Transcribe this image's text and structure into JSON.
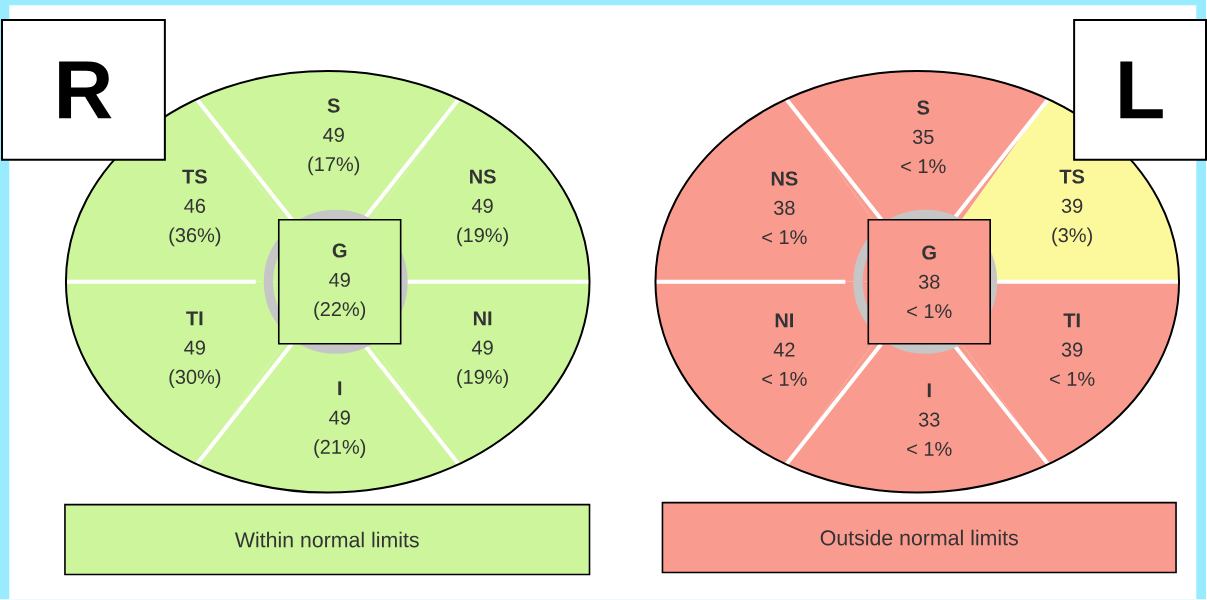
{
  "chart_data": [
    {
      "type": "other",
      "title": "R",
      "categories": [
        "S",
        "TS",
        "NS",
        "TI",
        "NI",
        "I",
        "G"
      ],
      "values": [
        49,
        46,
        49,
        49,
        49,
        49,
        49
      ],
      "data_labels": true,
      "colors": [
        "#ccf59c",
        "#ccf59c",
        "#ccf59c",
        "#ccf59c",
        "#ccf59c",
        "#ccf59c",
        "#ccf59c"
      ],
      "annotations": [
        {
          "text": "(17%)",
          "x": "S"
        },
        {
          "text": "(36%)",
          "x": "TS"
        },
        {
          "text": "(19%)",
          "x": "NS"
        },
        {
          "text": "(30%)",
          "x": "TI"
        },
        {
          "text": "(19%)",
          "x": "NI"
        },
        {
          "text": "(21%)",
          "x": "I"
        },
        {
          "text": "(22%)",
          "x": "G"
        },
        "Within normal limits"
      ]
    },
    {
      "type": "other",
      "title": "L",
      "categories": [
        "S",
        "NS",
        "TS",
        "NI",
        "TI",
        "I",
        "G"
      ],
      "values": [
        35,
        38,
        39,
        42,
        39,
        33,
        38
      ],
      "data_labels": true,
      "colors": [
        "#f99b8f",
        "#f99b8f",
        "#fbf99c",
        "#f99b8f",
        "#f99b8f",
        "#f99b8f",
        "#f99b8f"
      ],
      "annotations": [
        {
          "text": "< 1%",
          "x": "S"
        },
        {
          "text": "< 1%",
          "x": "NS"
        },
        {
          "text": "(3%)",
          "x": "TS"
        },
        {
          "text": "< 1%",
          "x": "NI"
        },
        {
          "text": "< 1%",
          "x": "TI"
        },
        {
          "text": "< 1%",
          "x": "I"
        },
        {
          "text": "< 1%",
          "x": "G"
        },
        "Outside normal limits"
      ]
    }
  ]
}
